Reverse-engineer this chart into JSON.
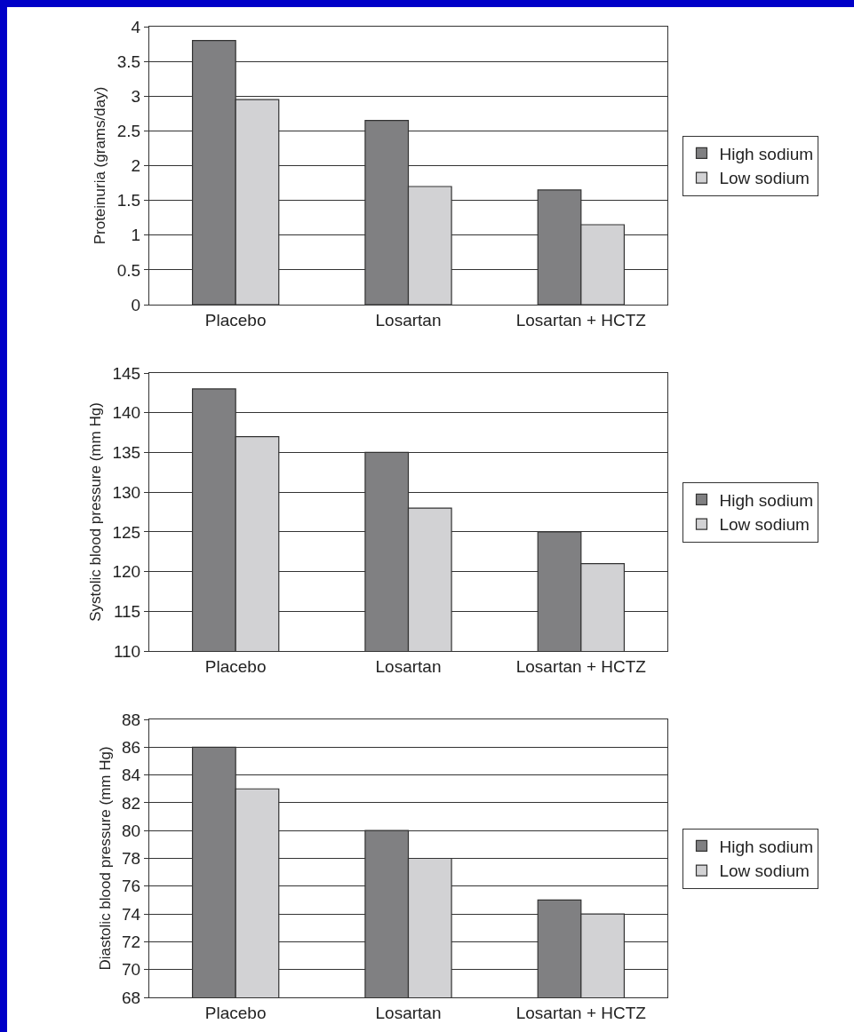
{
  "chart_data": [
    {
      "type": "bar",
      "ylabel": "Proteinuria (grams/day)",
      "categories": [
        "Placebo",
        "Losartan",
        "Losartan + HCTZ"
      ],
      "series": [
        {
          "name": "High sodium",
          "color": "#808082",
          "values": [
            3.8,
            2.65,
            1.65
          ]
        },
        {
          "name": "Low sodium",
          "color": "#d2d2d4",
          "values": [
            2.95,
            1.7,
            1.15
          ]
        }
      ],
      "ylim": [
        0,
        4
      ],
      "yticks": [
        0,
        0.5,
        1,
        1.5,
        2,
        2.5,
        3,
        3.5,
        4
      ],
      "grid": "y",
      "legend": "right"
    },
    {
      "type": "bar",
      "ylabel": "Systolic blood pressure (mm Hg)",
      "categories": [
        "Placebo",
        "Losartan",
        "Losartan + HCTZ"
      ],
      "series": [
        {
          "name": "High sodium",
          "color": "#808082",
          "values": [
            143,
            135,
            125
          ]
        },
        {
          "name": "Low sodium",
          "color": "#d2d2d4",
          "values": [
            137,
            128,
            121
          ]
        }
      ],
      "ylim": [
        110,
        145
      ],
      "yticks": [
        110,
        115,
        120,
        125,
        130,
        135,
        140,
        145
      ],
      "grid": "y",
      "legend": "right"
    },
    {
      "type": "bar",
      "ylabel": "Diastolic blood pressure (mm Hg)",
      "categories": [
        "Placebo",
        "Losartan",
        "Losartan + HCTZ"
      ],
      "series": [
        {
          "name": "High sodium",
          "color": "#808082",
          "values": [
            86,
            80,
            75
          ]
        },
        {
          "name": "Low sodium",
          "color": "#d2d2d4",
          "values": [
            83,
            78,
            74
          ]
        }
      ],
      "ylim": [
        68,
        88
      ],
      "yticks": [
        68,
        70,
        72,
        74,
        76,
        78,
        80,
        82,
        84,
        86,
        88
      ],
      "grid": "y",
      "legend": "right"
    }
  ]
}
